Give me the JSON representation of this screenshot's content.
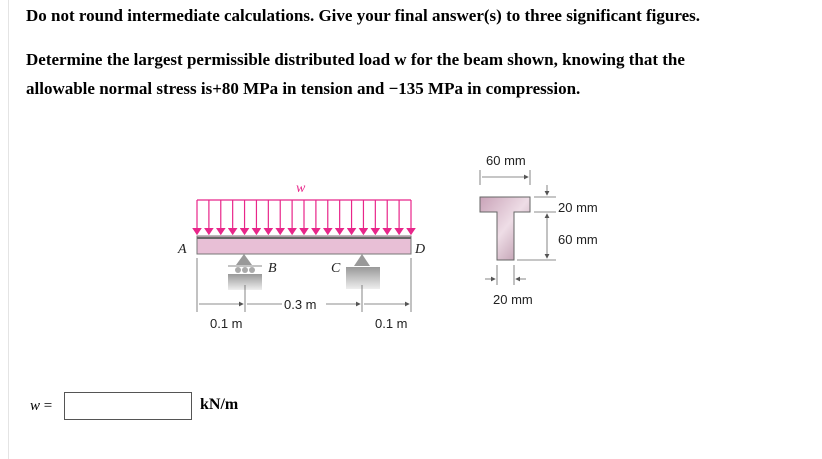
{
  "instructions": "Do not round intermediate calculations. Give your final answer(s) to three significant figures.",
  "problem": {
    "line1": "Determine the largest permissible distributed load w for the beam shown, knowing that the",
    "line2": "allowable normal stress is+80 MPa in tension and −135 MPa in compression."
  },
  "figure": {
    "load_label": "w",
    "load_color": "#e8268a",
    "beam_color": "#e8bfd6",
    "points": {
      "a": "A",
      "b": "B",
      "c": "C",
      "d": "D"
    },
    "dims": {
      "ab": "0.1 m",
      "bc": "0.3 m",
      "cd": "0.1 m"
    },
    "section": {
      "flange_width": "60 mm",
      "flange_thickness": "20 mm",
      "web_height": "60 mm",
      "web_thickness": "20 mm"
    }
  },
  "answer": {
    "label": "w",
    "equals": "=",
    "value": "",
    "unit": "kN/m"
  }
}
